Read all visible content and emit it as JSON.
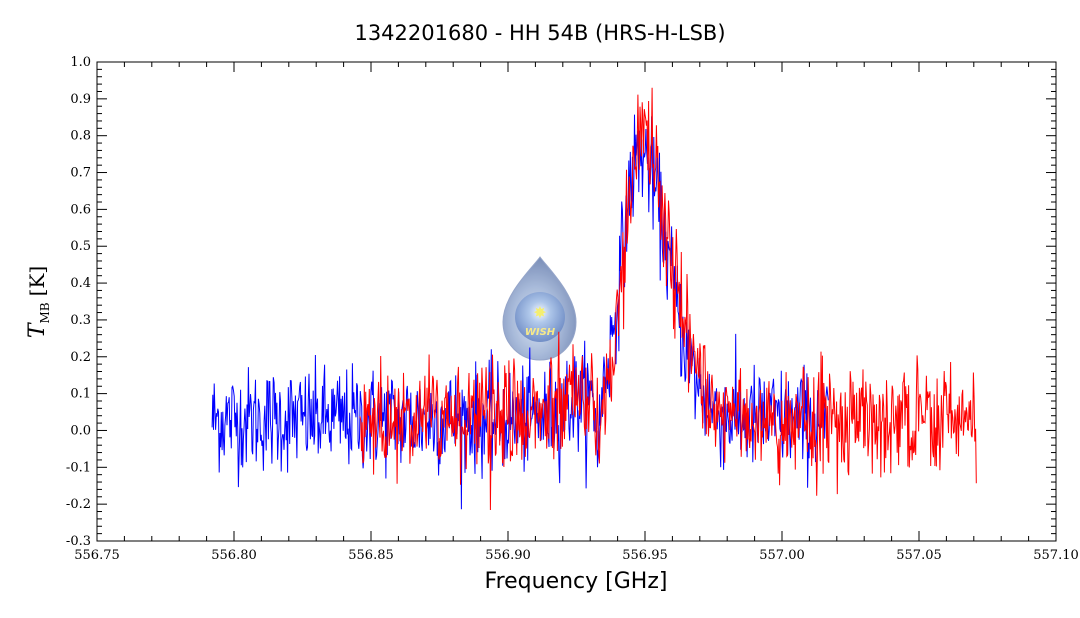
{
  "chart_data": {
    "type": "line",
    "title": "1342201680 - HH 54B (HRS-H-LSB)",
    "xlabel": "Frequency [GHz]",
    "ylabel": {
      "symbol": "T",
      "subscript": "MB",
      "unit": "[K]"
    },
    "xlim": [
      556.75,
      557.1
    ],
    "ylim": [
      -0.3,
      1.0
    ],
    "x_ticks": [
      "556.75",
      "556.80",
      "556.85",
      "556.90",
      "556.95",
      "557.00",
      "557.05",
      "557.10"
    ],
    "y_ticks": [
      "-0.3",
      "-0.2",
      "-0.1",
      "0.0",
      "0.1",
      "0.2",
      "0.3",
      "0.4",
      "0.5",
      "0.6",
      "0.7",
      "0.8",
      "0.9",
      "1.0"
    ],
    "grid": false,
    "logo_text": "WISH",
    "series": [
      {
        "color": "#0000ff",
        "x_start": 556.792,
        "x_end": 557.017,
        "profile": {
          "baseline": 0.03,
          "peak_center": 556.948,
          "peak_amplitude": 0.72,
          "noise_rms": 0.07,
          "absorption_dip_at": 556.933
        }
      },
      {
        "color": "#ff0000",
        "x_start": 556.846,
        "x_end": 557.071,
        "profile": {
          "baseline": 0.03,
          "peak_center": 556.949,
          "peak_amplitude": 0.78,
          "noise_rms": 0.07,
          "absorption_dip_at": 556.933
        }
      }
    ]
  }
}
